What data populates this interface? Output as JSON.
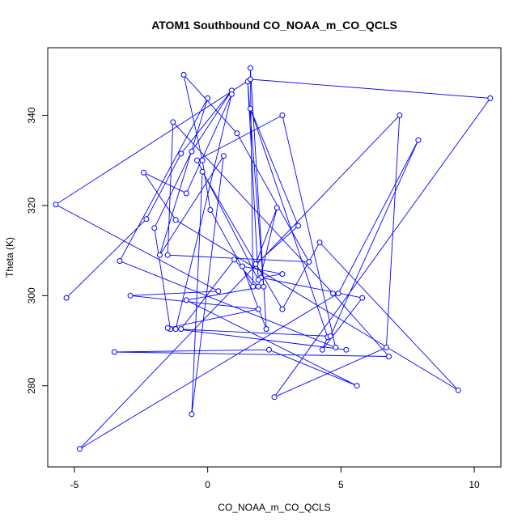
{
  "chart_data": {
    "type": "line",
    "title": "ATOM1 Southbound CO_NOAA_m_CO_QCLS",
    "xlabel": "CO_NOAA_m_CO_QCLS",
    "ylabel": "Theta (K)",
    "xlim": [
      -6.0,
      11.0
    ],
    "ylim": [
      262,
      355
    ],
    "xticks": [
      -5,
      0,
      5,
      10
    ],
    "yticks": [
      280,
      300,
      320,
      340
    ],
    "grid": false,
    "line_color": "#0000ff",
    "marker": "open-circle",
    "series": [
      {
        "x": [
          -5.3,
          -2.3,
          -1.0,
          0.9,
          -0.6,
          -2.0,
          -1.4,
          -1.0,
          1.0,
          1.9,
          2.6,
          1.8,
          3.4,
          1.6,
          4.5,
          4.3,
          5.8,
          2.0,
          2.8,
          1.3,
          2.2,
          1.6,
          1.7,
          0.1,
          -0.2,
          -0.9,
          1.1,
          3.8,
          -1.5,
          -1.3,
          4.7,
          6.8,
          -3.5,
          2.3,
          5.6,
          -0.8,
          2.1,
          1.5,
          1.9,
          -0.4,
          2.8,
          4.8,
          -3.3,
          0.0,
          -1.8,
          0.6,
          -0.6,
          -0.2,
          2.8,
          4.2,
          9.4,
          -1.2,
          -2.4,
          -0.8,
          0.9,
          -1.2,
          4.6,
          7.9,
          4.9,
          -4.8,
          7.2,
          6.7,
          2.5,
          10.6,
          1.6,
          -5.7,
          0.4,
          -2.9,
          1.9,
          -1.5,
          5.2
        ],
        "y": [
          299.5,
          317.0,
          331.5,
          345.5,
          332.0,
          315.0,
          292.6,
          292.6,
          308.0,
          302.0,
          319.5,
          307.0,
          315.5,
          341.5,
          290.8,
          288.0,
          299.5,
          304.0,
          304.8,
          306.5,
          292.6,
          350.5,
          302.0,
          319.0,
          330.0,
          349.0,
          336.0,
          307.5,
          309.0,
          338.5,
          300.5,
          286.5,
          287.5,
          288.0,
          280.0,
          299.0,
          302.0,
          347.5,
          303.5,
          330.0,
          340.0,
          288.5,
          307.7,
          343.8,
          309.0,
          331.0,
          273.7,
          327.5,
          297.0,
          311.8,
          279.0,
          316.8,
          327.3,
          322.7,
          344.7,
          292.6,
          291.0,
          334.5,
          300.5,
          266.0,
          340.0,
          288.5,
          277.5,
          343.8,
          348.0,
          320.2,
          301.0,
          300.0,
          297.0,
          292.8,
          288.0
        ]
      }
    ]
  }
}
